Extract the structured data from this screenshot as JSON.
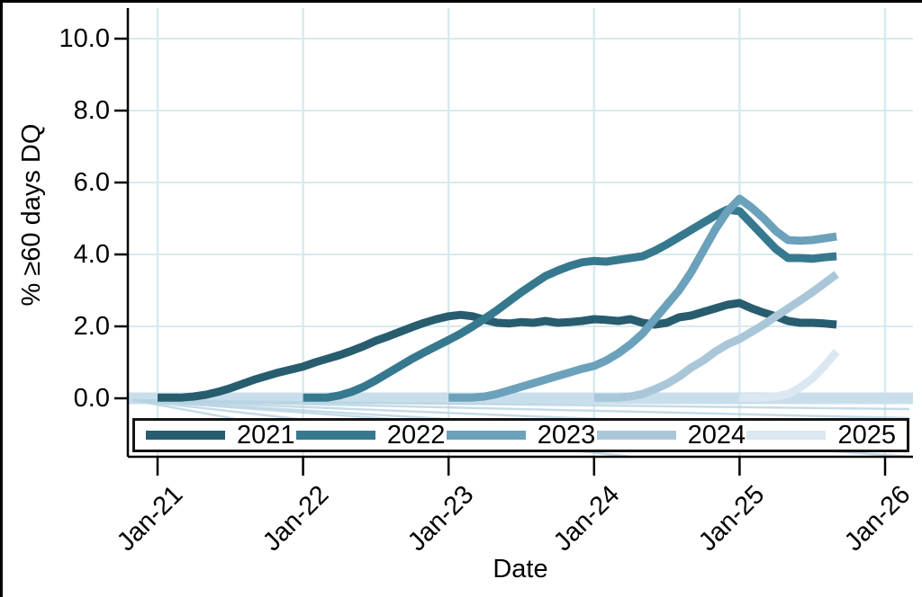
{
  "chart_data": {
    "type": "line",
    "title": "",
    "xlabel": "Date",
    "ylabel": "% ≥60 days DQ",
    "x_tick_labels": [
      "Jan-21",
      "Jan-22",
      "Jan-23",
      "Jan-24",
      "Jan-25",
      "Jan-26"
    ],
    "y_tick_labels": [
      "0.0",
      "2.0",
      "4.0",
      "6.0",
      "8.0",
      "10.0"
    ],
    "y_tick_values": [
      0,
      2,
      4,
      6,
      8,
      10
    ],
    "ylim": [
      -1.6,
      10.9
    ],
    "grid": true,
    "legend_position": "bottom-inside",
    "x_unit": "months since Jan-2021, monthly observations through Sep-2025",
    "zero_reference_band_color": "#c8dfeb",
    "background_fan_lines_color": "#b7d3e2",
    "grid_color": "#d8eaf0",
    "series": [
      {
        "name": "2021",
        "color": "#275d6e",
        "start_offset_months": 0,
        "values": [
          0.02,
          0.02,
          0.02,
          0.05,
          0.1,
          0.18,
          0.28,
          0.4,
          0.52,
          0.62,
          0.72,
          0.8,
          0.88,
          1.0,
          1.1,
          1.2,
          1.32,
          1.45,
          1.6,
          1.72,
          1.85,
          1.98,
          2.1,
          2.2,
          2.28,
          2.32,
          2.28,
          2.18,
          2.1,
          2.08,
          2.12,
          2.1,
          2.15,
          2.1,
          2.12,
          2.15,
          2.2,
          2.18,
          2.15,
          2.2,
          2.1,
          2.05,
          2.1,
          2.25,
          2.3,
          2.4,
          2.5,
          2.6,
          2.65,
          2.5,
          2.38,
          2.28,
          2.15,
          2.1,
          2.1,
          2.08,
          2.05
        ]
      },
      {
        "name": "2022",
        "color": "#36798f",
        "start_offset_months": 12,
        "values": [
          0.02,
          0.02,
          0.02,
          0.08,
          0.18,
          0.32,
          0.5,
          0.7,
          0.9,
          1.1,
          1.28,
          1.45,
          1.62,
          1.8,
          2.0,
          2.22,
          2.45,
          2.7,
          2.95,
          3.18,
          3.4,
          3.55,
          3.68,
          3.78,
          3.82,
          3.8,
          3.85,
          3.9,
          3.95,
          4.1,
          4.28,
          4.48,
          4.68,
          4.88,
          5.08,
          5.25,
          5.2,
          4.85,
          4.5,
          4.15,
          3.9,
          3.9,
          3.88,
          3.92,
          3.95
        ]
      },
      {
        "name": "2023",
        "color": "#6ba1bb",
        "start_offset_months": 24,
        "values": [
          0.02,
          0.02,
          0.02,
          0.05,
          0.12,
          0.22,
          0.32,
          0.42,
          0.52,
          0.62,
          0.72,
          0.82,
          0.9,
          1.05,
          1.25,
          1.5,
          1.8,
          2.2,
          2.6,
          3.0,
          3.5,
          4.1,
          4.7,
          5.2,
          5.55,
          5.3,
          5.0,
          4.65,
          4.4,
          4.38,
          4.4,
          4.45,
          4.5
        ]
      },
      {
        "name": "2024",
        "color": "#aac7da",
        "start_offset_months": 36,
        "values": [
          0.02,
          0.02,
          0.02,
          0.05,
          0.12,
          0.25,
          0.4,
          0.6,
          0.85,
          1.05,
          1.3,
          1.5,
          1.65,
          1.85,
          2.05,
          2.28,
          2.5,
          2.72,
          2.95,
          3.2,
          3.45
        ]
      },
      {
        "name": "2025",
        "color": "#dbe8f2",
        "start_offset_months": 48,
        "values": [
          0.02,
          0.02,
          0.02,
          0.05,
          0.12,
          0.3,
          0.55,
          0.9,
          1.3
        ]
      }
    ]
  }
}
